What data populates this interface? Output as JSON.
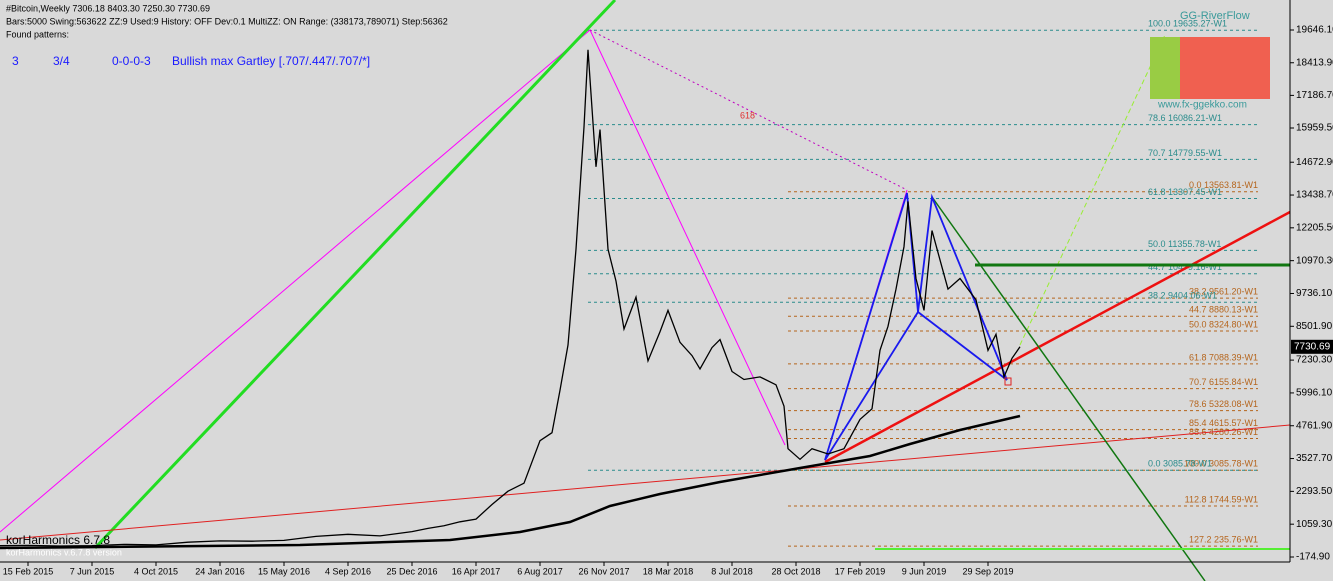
{
  "chart_data": {
    "type": "line",
    "title": "#Bitcoin,Weekly  7306.18 8403.30 7250.30 7730.69",
    "info": "Bars:5000  Swing:563622  ZZ:9  Used:9  History: OFF Dev:0.1  MultiZZ: ON  Range: (338173,789071)  Step:56362",
    "found_label": "Found patterns:",
    "pattern": [
      "3",
      "3/4",
      "0-0-0-3",
      "Bullish max Gartley [.707/.447/.707/*]"
    ],
    "indicator_label": "korHarmonics 6.7.8",
    "indicator_version": "korHarmonics v.6.7.8 version",
    "widget_title": "GG-RiverFlow",
    "widget_url": "www.fx-ggekko.com",
    "ratio_label": "618",
    "color": "#000000",
    "x": [
      -7,
      0,
      8,
      16,
      24,
      32,
      40,
      48,
      56,
      64,
      72,
      80,
      88,
      96,
      100,
      104,
      108,
      112,
      116,
      120,
      124,
      128,
      131,
      133,
      135,
      137,
      139,
      140,
      142,
      143,
      145,
      147,
      149,
      152,
      155,
      158,
      160,
      163,
      166,
      168,
      171,
      173,
      176,
      179,
      183,
      187,
      189,
      190,
      193,
      196,
      200,
      204,
      208,
      211,
      213,
      215,
      217,
      219,
      220,
      222,
      224,
      226,
      228,
      230,
      233,
      237,
      240,
      242,
      244,
      246,
      248
    ],
    "values": [
      250,
      260,
      240,
      250,
      300,
      280,
      380,
      430,
      420,
      450,
      600,
      680,
      620,
      780,
      900,
      1000,
      1150,
      1250,
      1800,
      2300,
      2600,
      4200,
      4500,
      6100,
      7800,
      11400,
      16000,
      18900,
      14500,
      15900,
      11400,
      10200,
      8400,
      9600,
      7200,
      8300,
      9100,
      7900,
      7400,
      6900,
      7700,
      8000,
      6800,
      6500,
      6600,
      6300,
      5500,
      3900,
      3500,
      3900,
      3700,
      3900,
      5000,
      5400,
      7600,
      8500,
      9900,
      11500,
      13200,
      10300,
      9100,
      12100,
      11000,
      9900,
      10300,
      9500,
      7600,
      8200,
      6600,
      7300,
      7730.69
    ],
    "last_price": 7730.69,
    "xlim": [
      -7,
      315.5
    ],
    "ylim": [
      -363,
      20774
    ],
    "xticks": [
      {
        "value": 0,
        "label": "15 Feb 2015"
      },
      {
        "value": 16,
        "label": "7 Jun 2015"
      },
      {
        "value": 32,
        "label": "4 Oct 2015"
      },
      {
        "value": 48,
        "label": "24 Jan 2016"
      },
      {
        "value": 64,
        "label": "15 May 2016"
      },
      {
        "value": 80,
        "label": "4 Sep 2016"
      },
      {
        "value": 96,
        "label": "25 Dec 2016"
      },
      {
        "value": 112,
        "label": "16 Apr 2017"
      },
      {
        "value": 128,
        "label": "6 Aug 2017"
      },
      {
        "value": 144,
        "label": "26 Nov 2017"
      },
      {
        "value": 160,
        "label": "18 Mar 2018"
      },
      {
        "value": 176,
        "label": "8 Jul 2018"
      },
      {
        "value": 192,
        "label": "28 Oct 2018"
      },
      {
        "value": 208,
        "label": "17 Feb 2019"
      },
      {
        "value": 224,
        "label": "9 Jun 2019"
      },
      {
        "value": 240,
        "label": "29 Sep 2019"
      }
    ],
    "yticks": [
      {
        "value": 19646.1,
        "label": "19646.10"
      },
      {
        "value": 18413.9,
        "label": "18413.90"
      },
      {
        "value": 17186.7,
        "label": "17186.70"
      },
      {
        "value": 15959.5,
        "label": "15959.50"
      },
      {
        "value": 14672.9,
        "label": "14672.90"
      },
      {
        "value": 13438.7,
        "label": "13438.70"
      },
      {
        "value": 12205.5,
        "label": "12205.50"
      },
      {
        "value": 10970.3,
        "label": "10970.30"
      },
      {
        "value": 9736.1,
        "label": "9736.10"
      },
      {
        "value": 8501.9,
        "label": "8501.90"
      },
      {
        "value": 7230.3,
        "label": "7230.30"
      },
      {
        "value": 5996.1,
        "label": "5996.10"
      },
      {
        "value": 4761.9,
        "label": "4761.90"
      },
      {
        "value": 3527.7,
        "label": "3527.70"
      },
      {
        "value": 2293.5,
        "label": "2293.50"
      },
      {
        "value": 1059.3,
        "label": "1059.30"
      },
      {
        "value": -174.9,
        "label": "-174.90"
      }
    ],
    "levels_a": {
      "color": "#b5651d",
      "start": 190,
      "items": [
        {
          "value": 13563.81,
          "label": "0.0   13563.81-W1"
        },
        {
          "value": 9561.2,
          "label": "38.2   9561.20-W1"
        },
        {
          "value": 8880.13,
          "label": "44.7   8880.13-W1"
        },
        {
          "value": 8324.8,
          "label": "50.0   8324.80-W1"
        },
        {
          "value": 7088.39,
          "label": "61.8   7088.39-W1"
        },
        {
          "value": 6155.84,
          "label": "70.7   6155.84-W1"
        },
        {
          "value": 5328.08,
          "label": "78.6   5328.08-W1"
        },
        {
          "value": 4615.57,
          "label": "85.4   4615.57-W1"
        },
        {
          "value": 4280.26,
          "label": "88.6   4280.26-W1"
        },
        {
          "value": 3085.78,
          "label": "100.0   3085.78-W1"
        },
        {
          "value": 1744.59,
          "label": "112.8   1744.59-W1"
        },
        {
          "value": 235.76,
          "label": "127.2   235.76-W1"
        }
      ]
    },
    "levels_b": {
      "color": "#2a8c8c",
      "start": 140,
      "items": [
        {
          "value": 19635.27,
          "label": "100.0   19635.27-W1"
        },
        {
          "value": 16086.21,
          "label": "78.6   16086.21-W1"
        },
        {
          "value": 14779.55,
          "label": "70.7   14779.55-W1"
        },
        {
          "value": 13307.45,
          "label": "61.8   13307.45-W1"
        },
        {
          "value": 11355.78,
          "label": "50.0   11355.78-W1"
        },
        {
          "value": 10479.16,
          "label": "44.7   10479.16-W1"
        },
        {
          "value": 9404.06,
          "label": "38.2   9404.06-W1"
        },
        {
          "value": 3085.78,
          "label": "0.0   3085.78-W1"
        }
      ]
    }
  }
}
